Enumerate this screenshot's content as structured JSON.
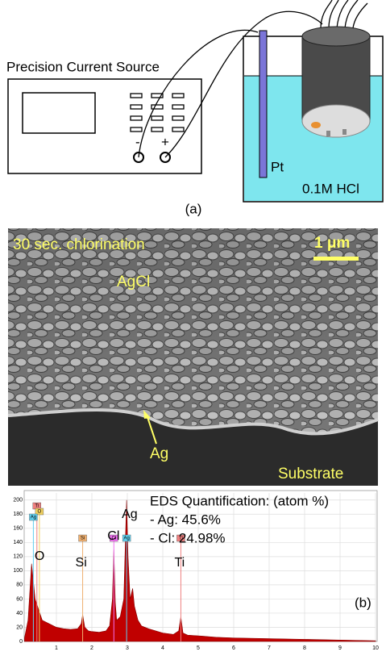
{
  "figure_a": {
    "instrument_label": "Precision Current Source",
    "minus": "-",
    "plus": "+",
    "electrode_label": "Pt",
    "solution_label": "0.1M HCl",
    "panel_label": "(a)"
  },
  "figure_b": {
    "sem": {
      "caption": "30 sec. chlorination",
      "scale_bar": "1 μm",
      "layer_label": "AgCl",
      "arrow_label": "Ag",
      "substrate_label": "Substrate"
    },
    "quantification": {
      "title": "EDS Quantification: (atom %)",
      "lines": [
        "- Ag: 45.6%",
        "- Cl: 24.98%"
      ]
    },
    "panel_label": "(b)"
  },
  "chart_data": {
    "type": "area",
    "color": "#c00000",
    "x": [
      0.1,
      0.2,
      0.3,
      0.4,
      0.5,
      0.6,
      0.8,
      1.0,
      1.2,
      1.4,
      1.6,
      1.7,
      1.74,
      1.8,
      1.9,
      2.0,
      2.2,
      2.4,
      2.5,
      2.58,
      2.62,
      2.66,
      2.7,
      2.8,
      2.9,
      2.95,
      2.98,
      3.02,
      3.08,
      3.15,
      3.2,
      3.3,
      3.4,
      3.6,
      3.8,
      4.0,
      4.3,
      4.45,
      4.51,
      4.57,
      4.7,
      5,
      5.5,
      6,
      7,
      8,
      9,
      10
    ],
    "values": [
      5,
      30,
      110,
      60,
      45,
      30,
      25,
      20,
      18,
      17,
      18,
      25,
      38,
      20,
      15,
      14,
      13,
      15,
      22,
      60,
      130,
      55,
      30,
      35,
      60,
      150,
      200,
      120,
      60,
      75,
      50,
      30,
      22,
      18,
      15,
      12,
      10,
      15,
      35,
      12,
      9,
      8,
      6,
      5,
      4,
      3,
      2,
      1
    ],
    "xlim": [
      0,
      10
    ],
    "ylim": [
      0,
      210
    ],
    "xticks": [
      1,
      2,
      3,
      4,
      5,
      6,
      7,
      8,
      9,
      10
    ],
    "yticks": [
      0,
      20,
      40,
      60,
      80,
      100,
      120,
      140,
      160,
      180,
      200
    ],
    "grid": true,
    "peak_labels": [
      {
        "label": "Ag",
        "x": 2.98
      },
      {
        "label": "Cl",
        "x": 2.62
      },
      {
        "label": "O",
        "x": 0.52
      },
      {
        "label": "Si",
        "x": 1.74
      },
      {
        "label": "Ti",
        "x": 4.51
      }
    ],
    "peak_tags": [
      {
        "label": "Ti",
        "x": 0.45,
        "color": "#f08080"
      },
      {
        "label": "O",
        "x": 0.52,
        "color": "#f0d060"
      },
      {
        "label": "Ag",
        "x": 0.35,
        "color": "#60d0f0"
      },
      {
        "label": "Si",
        "x": 1.74,
        "color": "#f0b070"
      },
      {
        "label": "Cl",
        "x": 2.62,
        "color": "#f070f0"
      },
      {
        "label": "Ag",
        "x": 2.98,
        "color": "#60d0f0"
      },
      {
        "label": "Ti",
        "x": 4.51,
        "color": "#f08080"
      }
    ]
  }
}
